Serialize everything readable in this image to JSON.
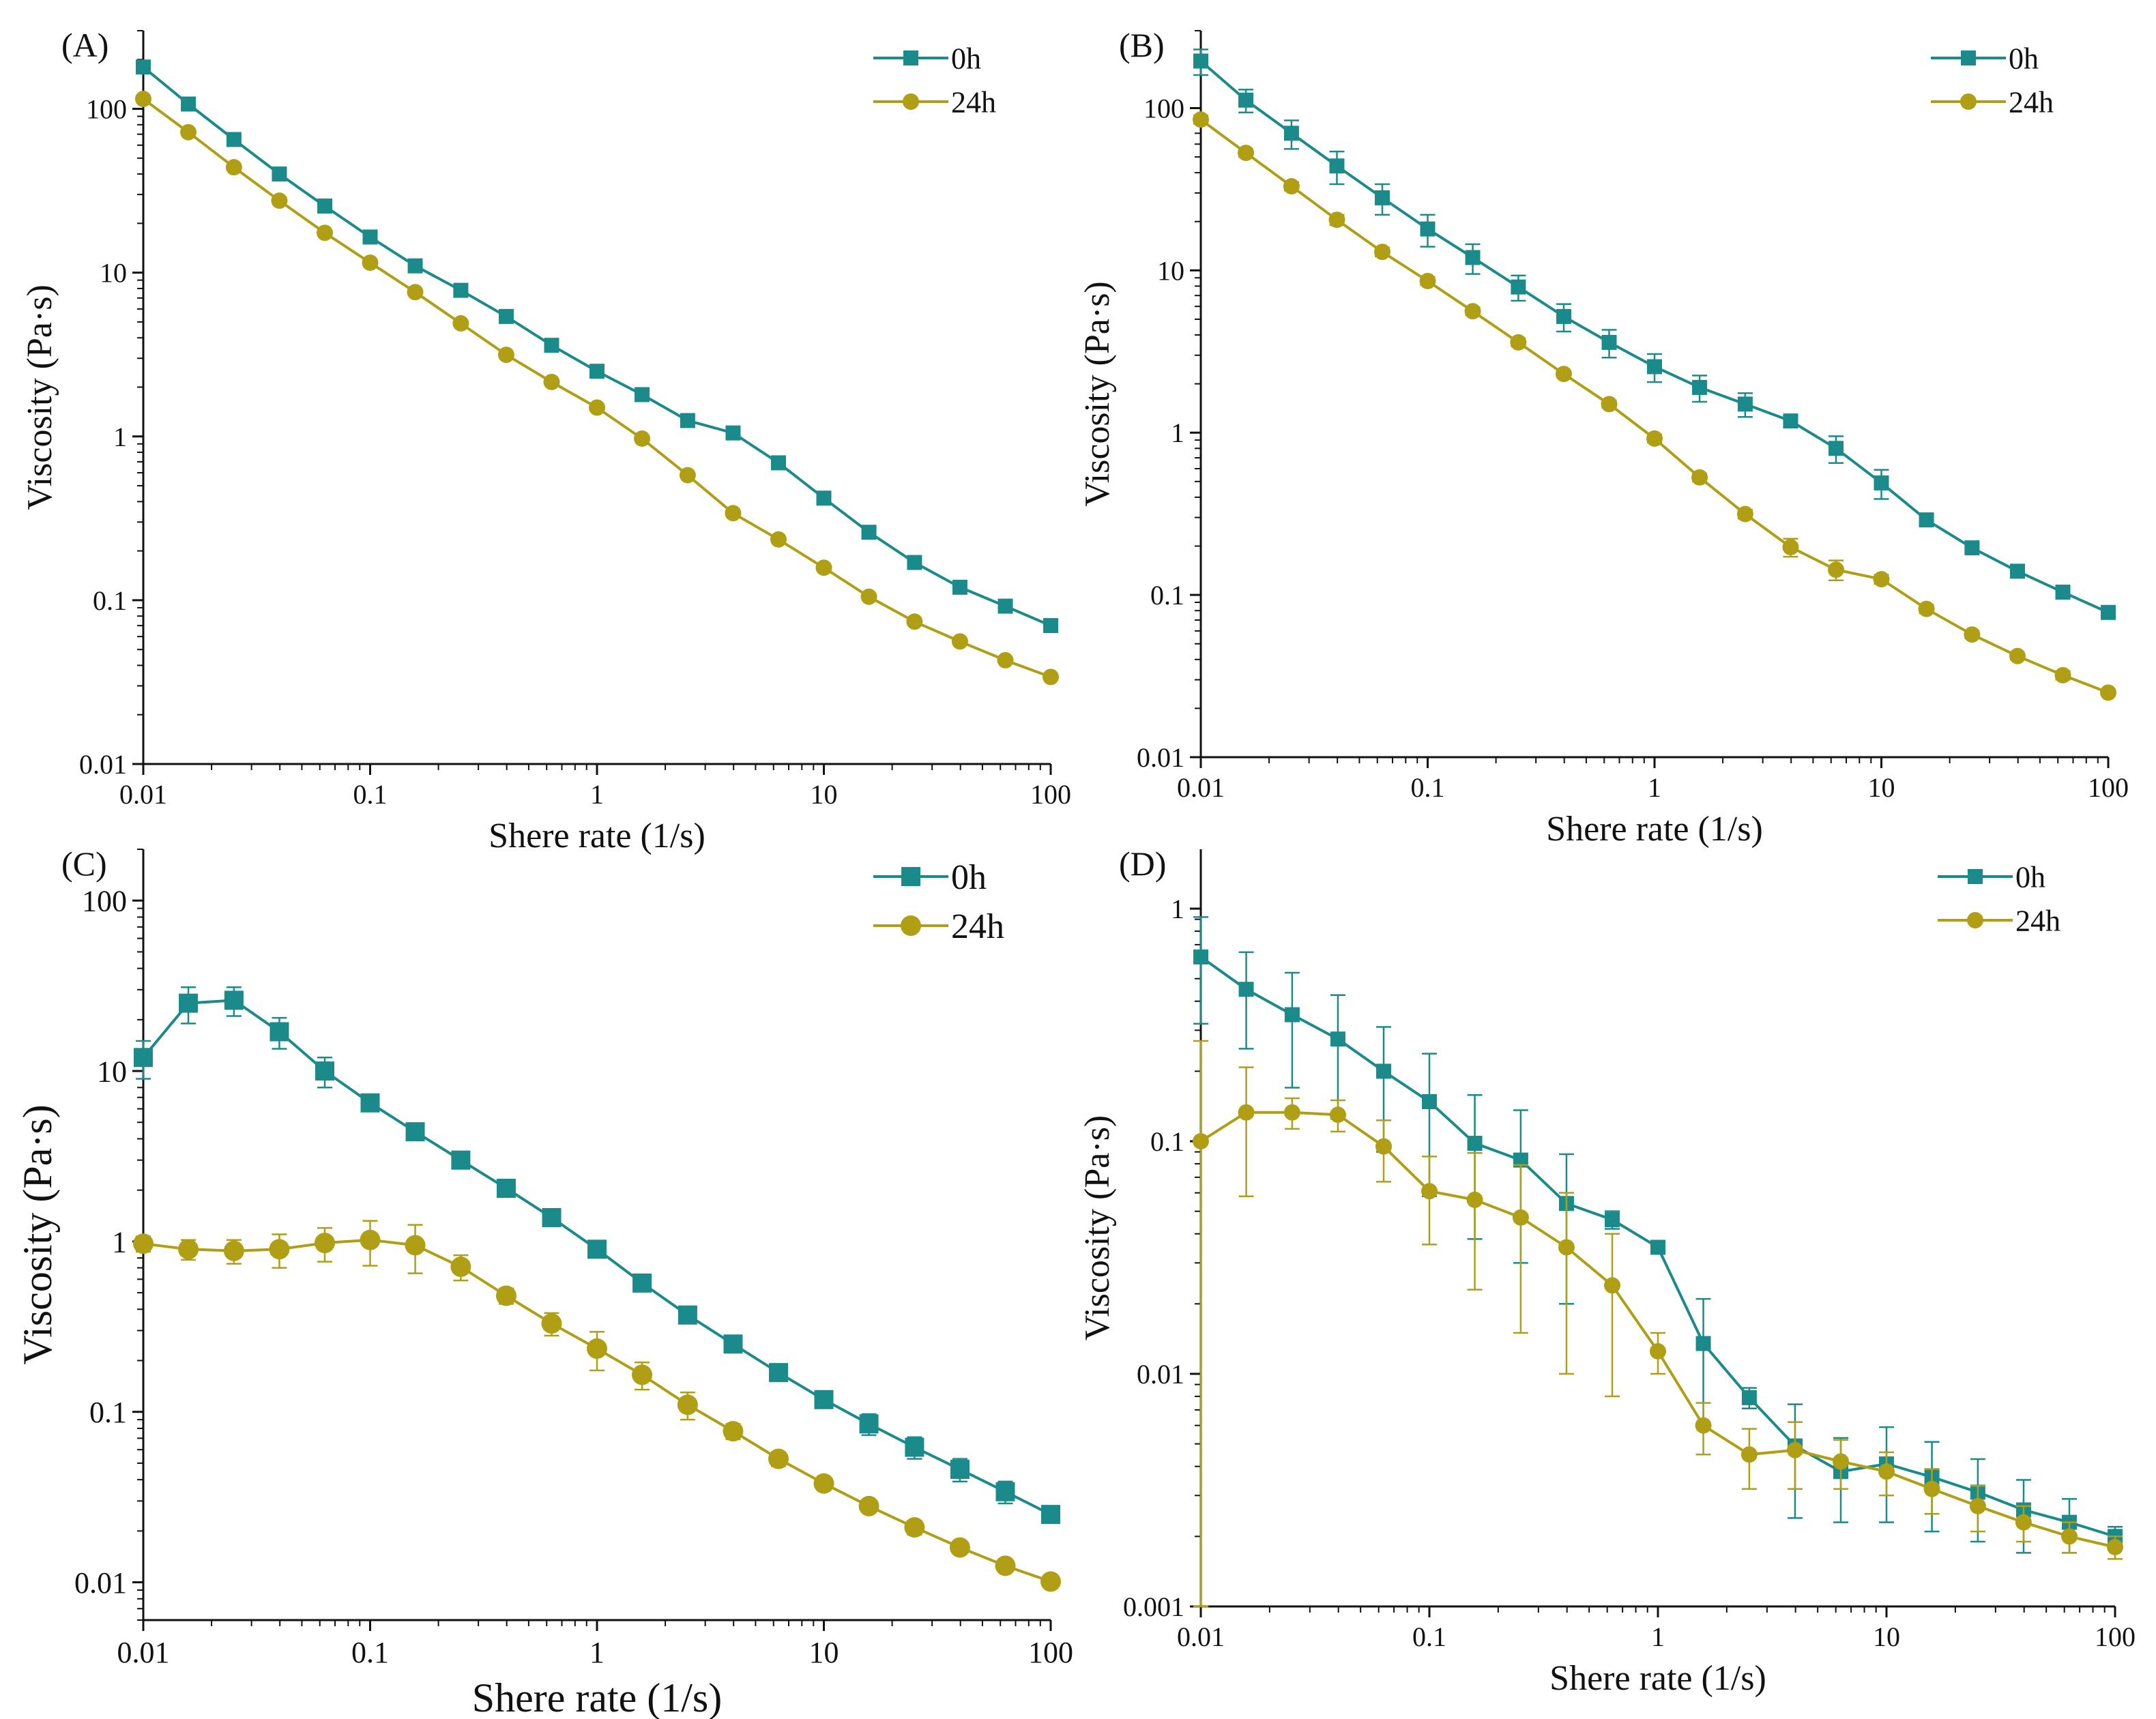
{
  "colors": {
    "teal": "#1b8a8a",
    "olive": "#b09e14"
  },
  "chart_data": [
    {
      "panel_label": "(A)",
      "type": "line",
      "xscale": "log",
      "yscale": "log",
      "xlim": [
        0.01,
        100
      ],
      "ylim": [
        0.01,
        300
      ],
      "xticks": [
        0.01,
        0.1,
        1,
        10,
        100
      ],
      "xtick_labels": [
        "0.01",
        "0.1",
        "1",
        "10",
        "100"
      ],
      "yticks": [
        0.01,
        0.1,
        1,
        10,
        100
      ],
      "ytick_labels": [
        "0.01",
        "0.1",
        "1",
        "10",
        "100"
      ],
      "xlabel": "Shere rate (1/s)",
      "ylabel": "Viscosity (Pa·s)",
      "legend_position": "top-right",
      "x": [
        0.01,
        0.0158,
        0.0251,
        0.0398,
        0.0631,
        0.1,
        0.158,
        0.251,
        0.398,
        0.631,
        1,
        1.58,
        2.51,
        3.98,
        6.31,
        10,
        15.8,
        25.1,
        39.8,
        63.1,
        100
      ],
      "series": [
        {
          "name": "0h",
          "marker": "square",
          "color": "#1b8a8a",
          "values": [
            180,
            107,
            65,
            40,
            25.5,
            16.5,
            11,
            7.8,
            5.4,
            3.6,
            2.5,
            1.8,
            1.25,
            1.05,
            0.69,
            0.42,
            0.26,
            0.17,
            0.12,
            0.092,
            0.07
          ]
        },
        {
          "name": "24h",
          "marker": "circle",
          "color": "#b09e14",
          "values": [
            115,
            72,
            44,
            27.5,
            17.5,
            11.5,
            7.6,
            4.9,
            3.15,
            2.15,
            1.5,
            0.97,
            0.58,
            0.34,
            0.235,
            0.158,
            0.105,
            0.074,
            0.056,
            0.043,
            0.034
          ]
        }
      ]
    },
    {
      "panel_label": "(B)",
      "type": "line",
      "xscale": "log",
      "yscale": "log",
      "xlim": [
        0.01,
        100
      ],
      "ylim": [
        0.01,
        300
      ],
      "xticks": [
        0.01,
        0.1,
        1,
        10,
        100
      ],
      "xtick_labels": [
        "0.01",
        "0.1",
        "1",
        "10",
        "100"
      ],
      "yticks": [
        0.01,
        0.1,
        1,
        10,
        100
      ],
      "ytick_labels": [
        "0.01",
        "0.1",
        "1",
        "10",
        "100"
      ],
      "xlabel": "Shere rate (1/s)",
      "ylabel": "Viscosity (Pa·s)",
      "legend_position": "top-right",
      "x": [
        0.01,
        0.0158,
        0.0251,
        0.0398,
        0.0631,
        0.1,
        0.158,
        0.251,
        0.398,
        0.631,
        1,
        1.58,
        2.51,
        3.98,
        6.31,
        10,
        15.8,
        25.1,
        39.8,
        63.1,
        100
      ],
      "series": [
        {
          "name": "0h",
          "marker": "square",
          "color": "#1b8a8a",
          "values": [
            195,
            112,
            70,
            44,
            28,
            18,
            12,
            7.9,
            5.2,
            3.6,
            2.55,
            1.9,
            1.5,
            1.18,
            0.8,
            0.49,
            0.29,
            0.195,
            0.14,
            0.104,
            0.078
          ],
          "errors": [
            35,
            18,
            14,
            10,
            6,
            4,
            2.5,
            1.4,
            1.0,
            0.7,
            0.5,
            0.35,
            0.25,
            0.1,
            0.15,
            0.1,
            0.02,
            0.01,
            0.01,
            0.008,
            0.006
          ]
        },
        {
          "name": "24h",
          "marker": "circle",
          "color": "#b09e14",
          "values": [
            85,
            53,
            33,
            20.5,
            13,
            8.6,
            5.6,
            3.6,
            2.3,
            1.5,
            0.92,
            0.53,
            0.315,
            0.197,
            0.143,
            0.125,
            0.082,
            0.057,
            0.042,
            0.032,
            0.025
          ],
          "errors": [
            5,
            3,
            2,
            1.5,
            0.8,
            0.5,
            0.3,
            0.2,
            0.1,
            0.08,
            0.05,
            0.03,
            0.02,
            0.025,
            0.02,
            0.008,
            0.005,
            0.003,
            0.002,
            0.002,
            0.001
          ]
        }
      ]
    },
    {
      "panel_label": "(C)",
      "type": "line",
      "xscale": "log",
      "yscale": "log",
      "xlim": [
        0.01,
        100
      ],
      "ylim": [
        0.006,
        200
      ],
      "xticks": [
        0.01,
        0.1,
        1,
        10,
        100
      ],
      "xtick_labels": [
        "0.01",
        "0.1",
        "1",
        "10",
        "100"
      ],
      "yticks": [
        0.01,
        0.1,
        1,
        10,
        100
      ],
      "ytick_labels": [
        "0.01",
        "0.1",
        "1",
        "10",
        "100"
      ],
      "xlabel": "Shere rate (1/s)",
      "ylabel": "Viscosity (Pa·s)",
      "legend_position": "top-right",
      "x": [
        0.01,
        0.0158,
        0.0251,
        0.0398,
        0.0631,
        0.1,
        0.158,
        0.251,
        0.398,
        0.631,
        1,
        1.58,
        2.51,
        3.98,
        6.31,
        10,
        15.8,
        25.1,
        39.8,
        63.1,
        100
      ],
      "series": [
        {
          "name": "0h",
          "marker": "square",
          "color": "#1b8a8a",
          "values": [
            12,
            25,
            26,
            17,
            10,
            6.5,
            4.4,
            3.0,
            2.05,
            1.38,
            0.9,
            0.57,
            0.37,
            0.25,
            0.17,
            0.118,
            0.085,
            0.062,
            0.046,
            0.034,
            0.025
          ],
          "errors": [
            3,
            6,
            5,
            3.5,
            2,
            0.5,
            0.3,
            0.2,
            0.1,
            0.08,
            0.05,
            0.05,
            0.03,
            0.02,
            0.01,
            0.008,
            0.012,
            0.009,
            0.007,
            0.005,
            0.002
          ]
        },
        {
          "name": "24h",
          "marker": "circle",
          "color": "#b09e14",
          "values": [
            0.97,
            0.9,
            0.88,
            0.9,
            0.98,
            1.02,
            0.95,
            0.71,
            0.48,
            0.33,
            0.235,
            0.165,
            0.11,
            0.077,
            0.053,
            0.038,
            0.028,
            0.021,
            0.016,
            0.0125,
            0.0101
          ],
          "errors": [
            0.1,
            0.12,
            0.14,
            0.2,
            0.22,
            0.3,
            0.3,
            0.12,
            0.05,
            0.05,
            0.06,
            0.03,
            0.02,
            0.008,
            0.005,
            0.003,
            0.002,
            0.002,
            0.001,
            0.001,
            0.0008
          ]
        }
      ]
    },
    {
      "panel_label": "(D)",
      "type": "line",
      "xscale": "log",
      "yscale": "log",
      "xlim": [
        0.01,
        100
      ],
      "ylim": [
        0.001,
        1.8
      ],
      "xticks": [
        0.01,
        0.1,
        1,
        10,
        100
      ],
      "xtick_labels": [
        "0.01",
        "0.1",
        "1",
        "10",
        "100"
      ],
      "yticks": [
        0.001,
        0.01,
        0.1,
        1
      ],
      "ytick_labels": [
        "0.001",
        "0.01",
        "0.1",
        "1"
      ],
      "xlabel": "Shere rate (1/s)",
      "ylabel": "Viscosity (Pa·s)",
      "legend_position": "top-right",
      "x": [
        0.01,
        0.0158,
        0.0251,
        0.0398,
        0.0631,
        0.1,
        0.158,
        0.251,
        0.398,
        0.631,
        1,
        1.58,
        2.51,
        3.98,
        6.31,
        10,
        15.8,
        25.1,
        39.8,
        63.1,
        100
      ],
      "series": [
        {
          "name": "0h",
          "marker": "square",
          "color": "#1b8a8a",
          "values": [
            0.62,
            0.45,
            0.35,
            0.275,
            0.2,
            0.148,
            0.098,
            0.083,
            0.054,
            0.046,
            0.035,
            0.0135,
            0.0079,
            0.0049,
            0.0038,
            0.0041,
            0.0036,
            0.0031,
            0.0026,
            0.0023,
            0.002
          ],
          "errors": [
            0.3,
            0.2,
            0.18,
            0.15,
            0.11,
            0.09,
            0.06,
            0.053,
            0.034,
            0.004,
            0.002,
            0.0075,
            0.0008,
            0.0025,
            0.0015,
            0.0018,
            0.0015,
            0.0012,
            0.0009,
            0.0006,
            0.0002
          ]
        },
        {
          "name": "24h",
          "marker": "circle",
          "color": "#b09e14",
          "values": [
            0.1,
            0.133,
            0.133,
            0.13,
            0.095,
            0.061,
            0.056,
            0.047,
            0.035,
            0.024,
            0.0125,
            0.006,
            0.0045,
            0.0047,
            0.0042,
            0.0038,
            0.0032,
            0.0027,
            0.0023,
            0.002,
            0.0018
          ],
          "errors": [
            0.17,
            0.075,
            0.02,
            0.02,
            0.028,
            0.025,
            0.033,
            0.032,
            0.025,
            0.016,
            0.0025,
            0.0015,
            0.0013,
            0.0015,
            0.001,
            0.0008,
            0.0007,
            0.0006,
            0.0004,
            0.0003,
            0.0002
          ]
        }
      ]
    }
  ]
}
